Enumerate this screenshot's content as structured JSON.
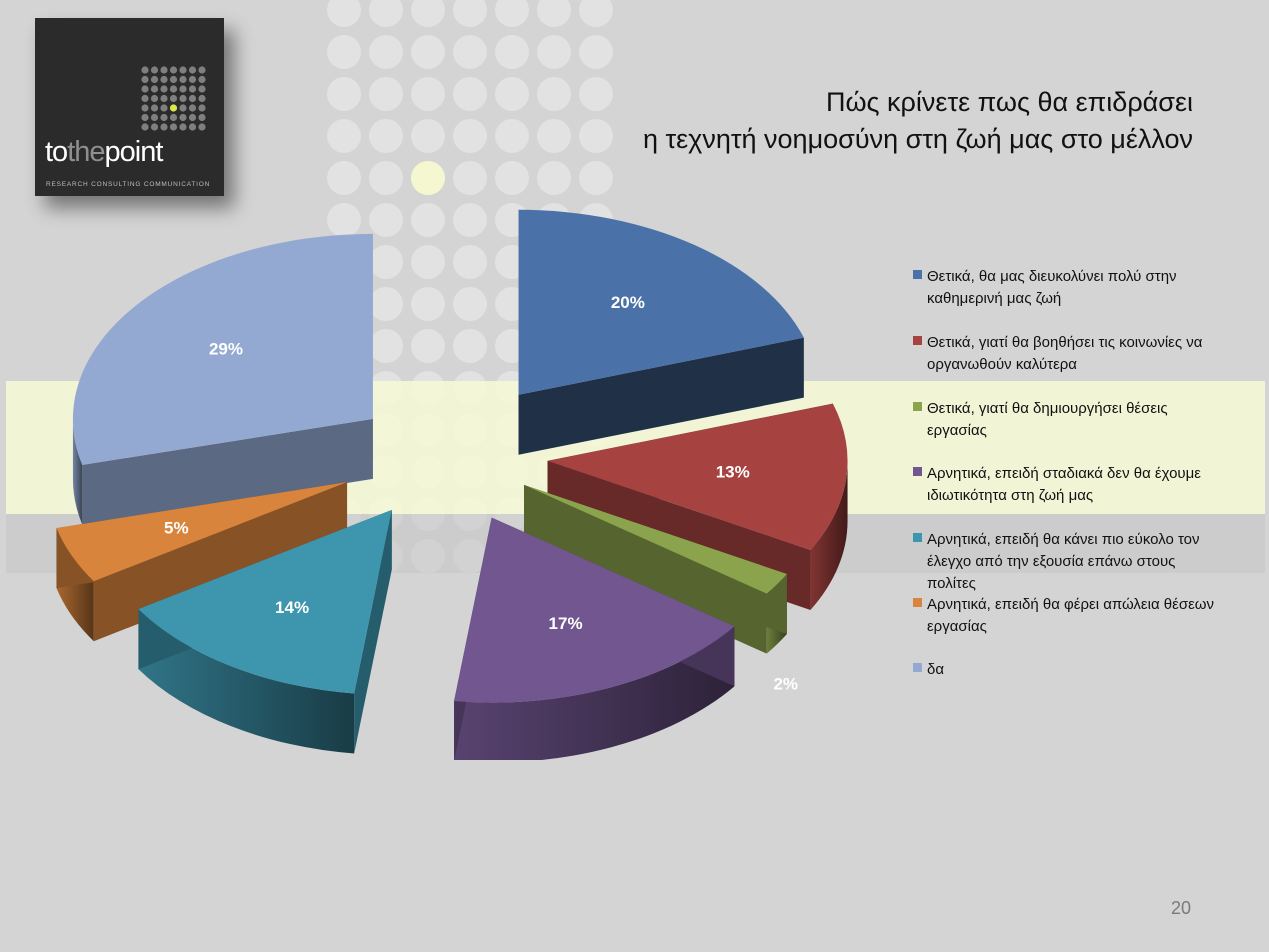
{
  "logo": {
    "word_part1": "to",
    "word_part2": "the",
    "word_part3": "point",
    "subtitle": "RESEARCH  CONSULTING  COMMUNICATION"
  },
  "title_lines": [
    "Πώς κρίνετε πως θα επιδράσει",
    "η τεχνητή νοημοσύνη στη ζωή μας στο μέλλον"
  ],
  "page_number": "20",
  "chart_data": {
    "type": "pie",
    "title": "Πώς κρίνετε πως θα επιδράσει η τεχνητή νοημοσύνη στη ζωή μας στο μέλλον",
    "exploded": true,
    "three_d": true,
    "legend_position": "right",
    "slices": [
      {
        "label": "Θετικά, θα μας διευκολύνει πολύ στην καθημερινή μας ζωή",
        "value": 20,
        "display": "20%",
        "color": "#4a72a8"
      },
      {
        "label": "Θετικά, γιατί θα βοηθήσει τις κοινωνίες να οργανωθούν καλύτερα",
        "value": 13,
        "display": "13%",
        "color": "#a64340"
      },
      {
        "label": "Θετικά, γιατί θα δημιουργήσει θέσεις εργασίας",
        "value": 2,
        "display": "2%",
        "color": "#8aa34c"
      },
      {
        "label": "Αρνητικά, επειδή σταδιακά δεν θα έχουμε ιδιωτικότητα στη ζωή μας",
        "value": 17,
        "display": "17%",
        "color": "#71568f"
      },
      {
        "label": "Αρνητικά, επειδή θα κάνει πιο εύκολο τον έλεγχο από την εξουσία επάνω στους πολίτες",
        "value": 14,
        "display": "14%",
        "color": "#3e96ae"
      },
      {
        "label": "Αρνητικά, επειδή θα φέρει απώλεια θέσεων εργασίας",
        "value": 5,
        "display": "5%",
        "color": "#d9843c"
      },
      {
        "label": "δα",
        "value": 29,
        "display": "29%",
        "color": "#93a9d2"
      }
    ]
  }
}
